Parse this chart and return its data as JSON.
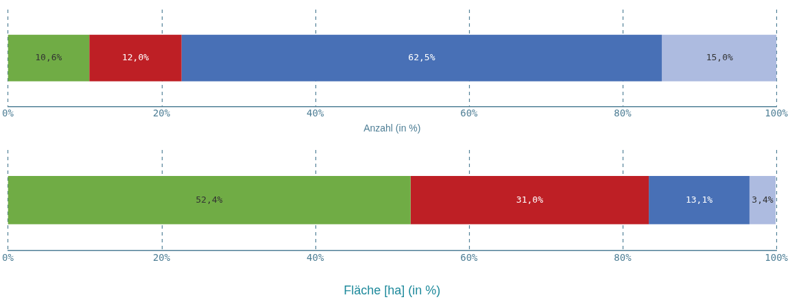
{
  "chart_data": [
    {
      "type": "bar",
      "orientation": "horizontal",
      "stacked": true,
      "categories": [
        null
      ],
      "xlabel": "Anzahl (in %)",
      "xlim": [
        0,
        100
      ],
      "xticks": [
        {
          "value": 0,
          "label": "0%"
        },
        {
          "value": 20,
          "label": "20%"
        },
        {
          "value": 40,
          "label": "40%"
        },
        {
          "value": 60,
          "label": "60%"
        },
        {
          "value": 80,
          "label": "80%"
        },
        {
          "value": 100,
          "label": "100%"
        }
      ],
      "grid": "x",
      "legend": false,
      "series": [
        {
          "color": "#70ac45",
          "values": [
            10.6
          ],
          "value_labels": [
            "10,6%"
          ]
        },
        {
          "color": "#be1f25",
          "values": [
            12.0
          ],
          "value_labels": [
            "12,0%"
          ]
        },
        {
          "color": "#4870b6",
          "values": [
            62.5
          ],
          "value_labels": [
            "62,5%"
          ]
        },
        {
          "color": "#adbbe0",
          "values": [
            15.0
          ],
          "value_labels": [
            "15,0%"
          ]
        }
      ]
    },
    {
      "type": "bar",
      "orientation": "horizontal",
      "stacked": true,
      "categories": [
        null
      ],
      "xlabel": "Fläche [ha] (in %)",
      "xlim": [
        0,
        100
      ],
      "xticks": [
        {
          "value": 0,
          "label": "0%"
        },
        {
          "value": 20,
          "label": "20%"
        },
        {
          "value": 40,
          "label": "40%"
        },
        {
          "value": 60,
          "label": "60%"
        },
        {
          "value": 80,
          "label": "80%"
        },
        {
          "value": 100,
          "label": "100%"
        }
      ],
      "grid": "x",
      "legend": false,
      "series": [
        {
          "color": "#70ac45",
          "values": [
            52.4
          ],
          "value_labels": [
            "52,4%"
          ]
        },
        {
          "color": "#be1f25",
          "values": [
            31.0
          ],
          "value_labels": [
            "31,0%"
          ]
        },
        {
          "color": "#4870b6",
          "values": [
            13.1
          ],
          "value_labels": [
            "13,1%"
          ]
        },
        {
          "color": "#adbbe0",
          "values": [
            3.4
          ],
          "value_labels": [
            "3,4%"
          ]
        }
      ]
    }
  ]
}
